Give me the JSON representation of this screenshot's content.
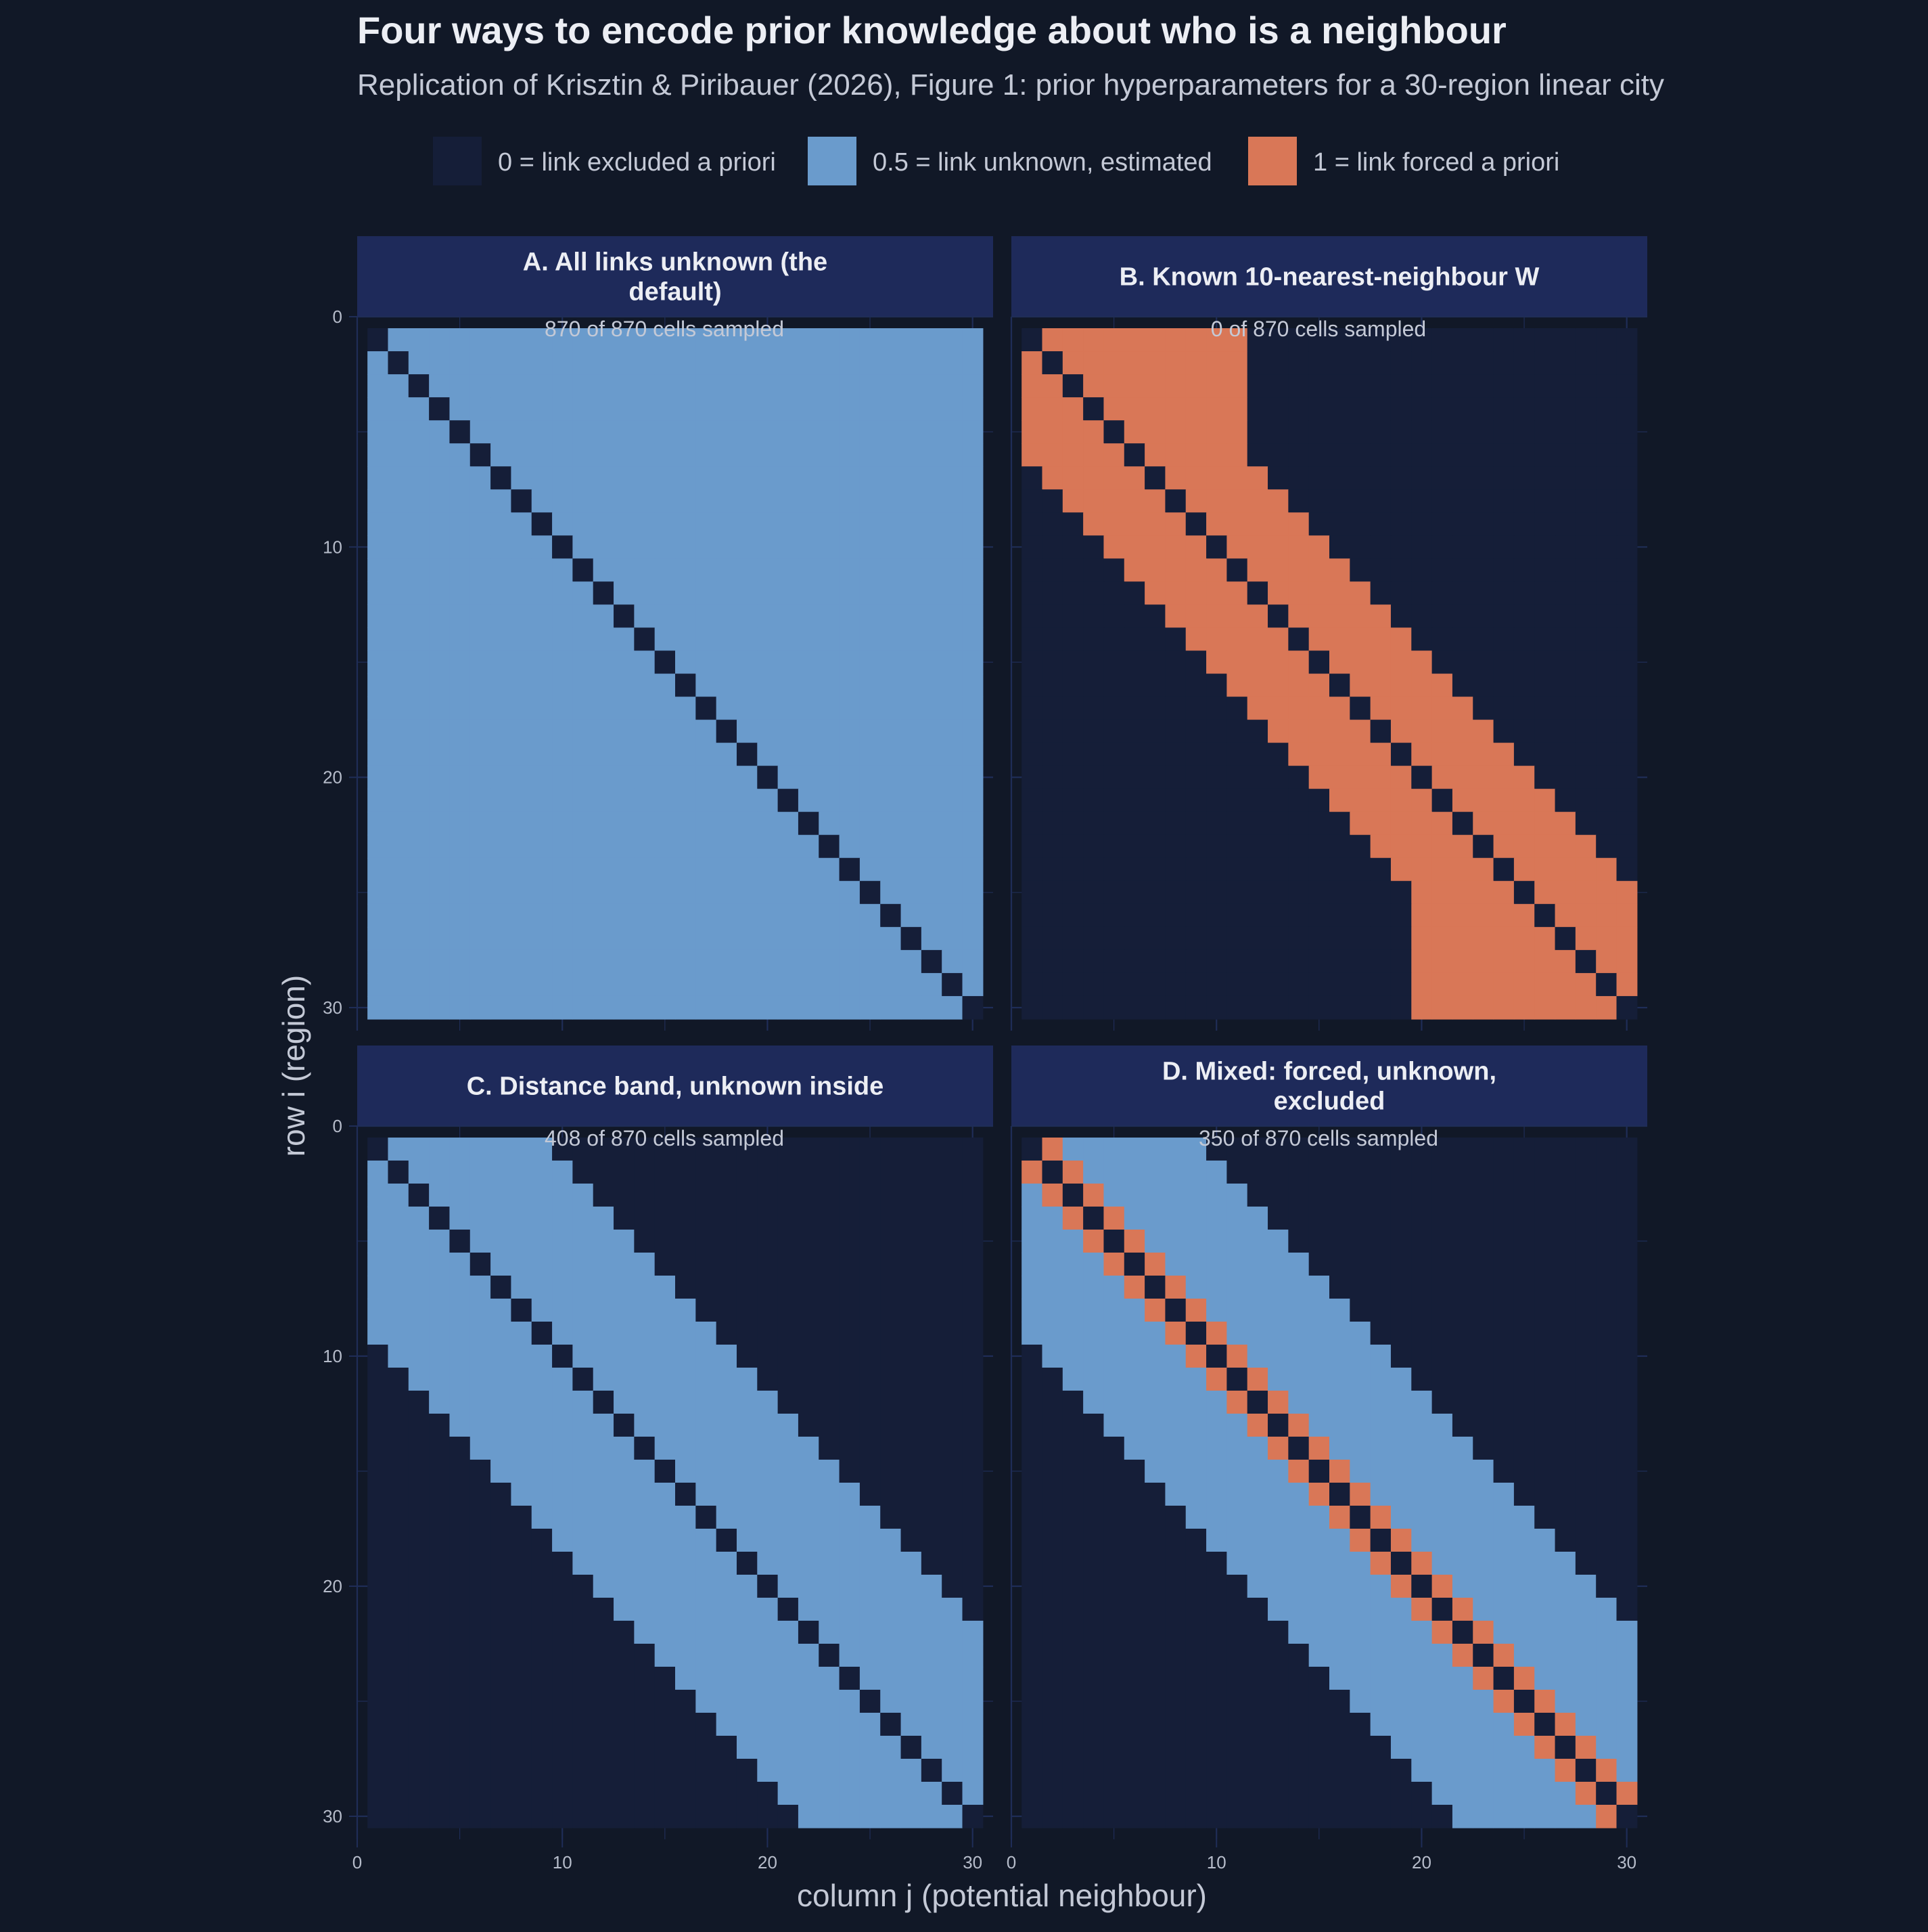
{
  "title": "Four ways to encode prior knowledge about who is a neighbour",
  "subtitle": "Replication of Krisztin & Piribauer (2026), Figure 1: prior hyperparameters for a 30-region linear city",
  "colors": {
    "background": "#111827",
    "strip": "#1e2a5a",
    "grid": "#1f2d57",
    "excluded": "#151e38",
    "unknown": "#6a9bcc",
    "forced": "#d97757",
    "text_main": "#eceef4",
    "text_muted": "#c4c9d6",
    "tick_text": "#b6bcca"
  },
  "legend": {
    "items": [
      {
        "label": "0 = link excluded a priori",
        "color": "#151e38"
      },
      {
        "label": "0.5 = link unknown, estimated",
        "color": "#6a9bcc"
      },
      {
        "label": "1 = link forced a priori",
        "color": "#d97757"
      }
    ]
  },
  "axes": {
    "xlabel": "column j (potential neighbour)",
    "ylabel": "row i (region)",
    "ticks": [
      "0",
      "10",
      "20",
      "30"
    ]
  },
  "chart_data": {
    "type": "heatmap",
    "n_regions": 30,
    "value_legend": {
      "0": "link excluded a priori",
      "0.5": "link unknown, estimated",
      "1": "link forced a priori"
    },
    "xlim": [
      0,
      31
    ],
    "ylim": [
      31,
      0
    ],
    "panels": [
      {
        "id": "A",
        "title": "A. All links unknown (the default)",
        "title_lines": [
          "A. All links unknown (the",
          "default)"
        ],
        "subtitle": "870 of 870 cells sampled",
        "rule": "diagonal (i = j) = 0; every off-diagonal cell = 0.5"
      },
      {
        "id": "B",
        "title": "B. Known 10-nearest-neighbour W",
        "title_lines": [
          "B. Known 10-nearest-neighbour W"
        ],
        "subtitle": "0 of 870 cells sampled",
        "rule": "diagonal = 0; the 10 nearest regions of each row (ties toward lower index) = 1; all other cells = 0"
      },
      {
        "id": "C",
        "title": "C. Distance band, unknown inside",
        "title_lines": [
          "C. Distance band, unknown inside"
        ],
        "subtitle": "408 of 870 cells sampled",
        "rule": "diagonal = 0; cells with 1 ≤ |i − j| ≤ 8 = 0.5; all other cells = 0"
      },
      {
        "id": "D",
        "title": "D. Mixed: forced, unknown, excluded",
        "title_lines": [
          "D. Mixed: forced, unknown,",
          "excluded"
        ],
        "subtitle": "350 of 870 cells sampled",
        "rule": "diagonal = 0; cells with |i − j| = 1 = 1; cells with 2 ≤ |i − j| ≤ 8 = 0.5; all other cells = 0"
      }
    ]
  }
}
